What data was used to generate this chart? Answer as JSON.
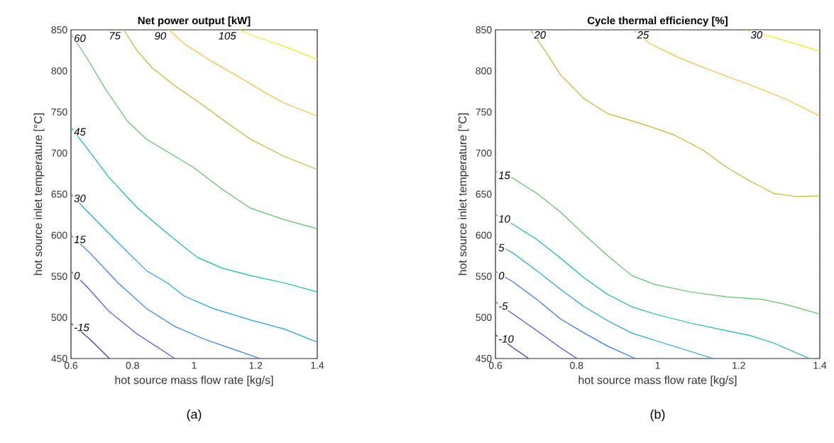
{
  "chart_data": [
    {
      "type": "line",
      "title": "Net power output [kW]",
      "xlabel": "hot source mass flow rate [kg/s]",
      "ylabel": "hot source inlet temperature [°C]",
      "xlim": [
        0.6,
        1.4
      ],
      "ylim": [
        450,
        850
      ],
      "xticks": [
        0.6,
        0.8,
        1,
        1.2,
        1.4
      ],
      "yticks": [
        450,
        500,
        550,
        600,
        650,
        700,
        750,
        800,
        850
      ],
      "marker": "none",
      "line_style": "solid",
      "annotations": [
        "(a)"
      ],
      "series": [
        {
          "name": "-15",
          "color": "#3d2fa8",
          "x": [
            0.6,
            0.66,
            0.725
          ],
          "values": [
            493,
            474,
            450
          ]
        },
        {
          "name": "0",
          "color": "#4552e8",
          "x": [
            0.6,
            0.648,
            0.722,
            0.814,
            0.888,
            0.937
          ],
          "values": [
            556,
            539,
            508,
            480,
            462,
            450
          ]
        },
        {
          "name": "15",
          "color": "#2f7bf5",
          "x": [
            0.6,
            0.66,
            0.753,
            0.845,
            0.937,
            1.03,
            1.122,
            1.214
          ],
          "values": [
            600,
            579,
            542,
            511,
            489,
            474,
            462,
            450
          ]
        },
        {
          "name": "30",
          "color": "#1aa6dc",
          "x": [
            0.6,
            0.648,
            0.753,
            0.845,
            0.913,
            0.968,
            1.06,
            1.183,
            1.292,
            1.4
          ],
          "values": [
            650,
            631,
            591,
            557,
            542,
            526,
            511,
            497,
            486,
            470
          ]
        },
        {
          "name": "45",
          "color": "#12b7ad",
          "x": [
            0.6,
            0.648,
            0.722,
            0.814,
            0.888,
            0.95,
            1.011,
            1.091,
            1.183,
            1.292,
            1.4
          ],
          "values": [
            731,
            708,
            671,
            634,
            610,
            591,
            573,
            560,
            551,
            542,
            531
          ]
        },
        {
          "name": "60",
          "color": "#5cc463",
          "x": [
            0.6,
            0.648,
            0.71,
            0.783,
            0.845,
            0.925,
            1.0,
            1.091,
            1.183,
            1.292,
            1.4
          ],
          "values": [
            845,
            818,
            779,
            739,
            717,
            699,
            682,
            656,
            633,
            619,
            608
          ]
        },
        {
          "name": "75",
          "color": "#c5b52a",
          "x": [
            0.771,
            0.814,
            0.863,
            0.937,
            1.03,
            1.11,
            1.183,
            1.292,
            1.4
          ],
          "values": [
            850,
            825,
            804,
            782,
            758,
            736,
            717,
            696,
            680
          ]
        },
        {
          "name": "90",
          "color": "#fbbd33",
          "x": [
            0.919,
            0.968,
            1.06,
            1.153,
            1.233,
            1.292,
            1.4
          ],
          "values": [
            850,
            833,
            811,
            791,
            773,
            761,
            745
          ]
        },
        {
          "name": "105",
          "color": "#f6e81e",
          "x": [
            1.146,
            1.177,
            1.245,
            1.292,
            1.4
          ],
          "values": [
            850,
            845,
            836,
            830,
            814
          ]
        }
      ]
    },
    {
      "type": "line",
      "title": "Cycle thermal efficiency [%]",
      "xlabel": "hot source mass flow rate [kg/s]",
      "ylabel": "hot source inlet temperature [°C]",
      "xlim": [
        0.6,
        1.4
      ],
      "ylim": [
        450,
        850
      ],
      "xticks": [
        0.6,
        0.8,
        1,
        1.2,
        1.4
      ],
      "yticks": [
        450,
        500,
        550,
        600,
        650,
        700,
        750,
        800,
        850
      ],
      "marker": "none",
      "line_style": "solid",
      "annotations": [
        "(b)"
      ],
      "series": [
        {
          "name": "-10",
          "color": "#3d2fa8",
          "x": [
            0.6,
            0.644,
            0.682
          ],
          "values": [
            479,
            463,
            450
          ]
        },
        {
          "name": "-5",
          "color": "#4552e8",
          "x": [
            0.6,
            0.644,
            0.702,
            0.761,
            0.801
          ],
          "values": [
            519,
            504,
            484,
            463,
            450
          ]
        },
        {
          "name": "0",
          "color": "#2f7bf5",
          "x": [
            0.6,
            0.644,
            0.702,
            0.761,
            0.819,
            0.877,
            0.945
          ],
          "values": [
            556,
            543,
            522,
            498,
            481,
            465,
            450
          ]
        },
        {
          "name": "5",
          "color": "#1aa6dc",
          "x": [
            0.6,
            0.644,
            0.702,
            0.761,
            0.819,
            0.877,
            0.936,
            0.994,
            1.053,
            1.137
          ],
          "values": [
            590,
            578,
            557,
            534,
            513,
            496,
            481,
            472,
            463,
            450
          ]
        },
        {
          "name": "10",
          "color": "#12b7ad",
          "x": [
            0.6,
            0.644,
            0.702,
            0.761,
            0.819,
            0.877,
            0.936,
            0.994,
            1.082,
            1.169,
            1.228,
            1.286,
            1.374
          ],
          "values": [
            625,
            613,
            595,
            572,
            548,
            528,
            513,
            504,
            493,
            484,
            478,
            469,
            450
          ]
        },
        {
          "name": "15",
          "color": "#5cc463",
          "x": [
            0.6,
            0.644,
            0.702,
            0.761,
            0.819,
            0.877,
            0.936,
            0.994,
            1.082,
            1.169,
            1.257,
            1.315,
            1.4
          ],
          "values": [
            678,
            669,
            651,
            628,
            601,
            575,
            551,
            540,
            531,
            525,
            522,
            516,
            504
          ]
        },
        {
          "name": "20",
          "color": "#c5b52a",
          "x": [
            0.688,
            0.726,
            0.761,
            0.819,
            0.877,
            0.965,
            1.041,
            1.111,
            1.169,
            1.228,
            1.286,
            1.345,
            1.4
          ],
          "values": [
            849,
            822,
            795,
            766,
            748,
            735,
            722,
            704,
            683,
            666,
            651,
            647,
            648
          ]
        },
        {
          "name": "25",
          "color": "#fbbd33",
          "x": [
            0.942,
            0.982,
            1.053,
            1.14,
            1.228,
            1.315,
            1.4
          ],
          "values": [
            849,
            833,
            816,
            799,
            783,
            766,
            745
          ]
        },
        {
          "name": "30",
          "color": "#f6e81e",
          "x": [
            1.222,
            1.286,
            1.4
          ],
          "values": [
            849,
            841,
            824
          ]
        }
      ]
    }
  ]
}
